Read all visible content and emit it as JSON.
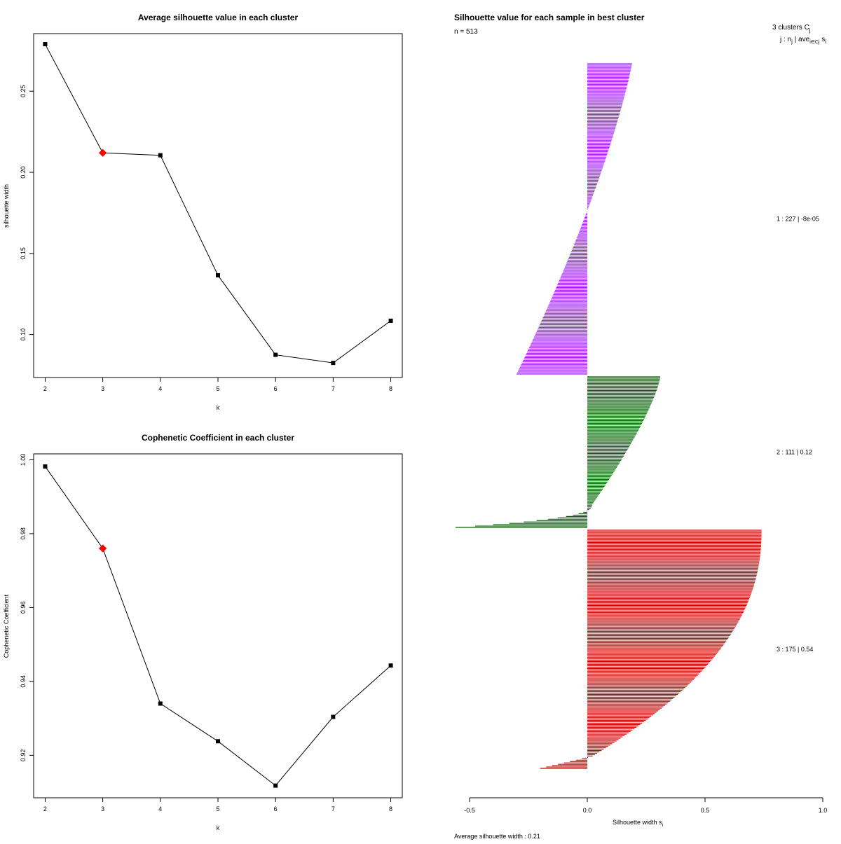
{
  "chart_data": [
    {
      "type": "line",
      "title": "Average silhouette value in each cluster",
      "xlabel": "k",
      "ylabel": "silhouette width",
      "x": [
        2,
        3,
        4,
        5,
        6,
        7,
        8
      ],
      "values": [
        0.279,
        0.212,
        0.2105,
        0.1365,
        0.0875,
        0.0825,
        0.1085
      ],
      "highlight_x": 3,
      "highlight_color": "#ff0000",
      "xticks": [
        "2",
        "3",
        "4",
        "5",
        "6",
        "7",
        "8"
      ],
      "yticks": [
        "0.10",
        "0.15",
        "0.20",
        "0.25"
      ],
      "ytick_values": [
        0.1,
        0.15,
        0.2,
        0.25
      ],
      "xlim": [
        1.8,
        8.2
      ],
      "ylim": [
        0.0735,
        0.2855
      ]
    },
    {
      "type": "line",
      "title": "Cophenetic Coefficient in each cluster",
      "xlabel": "k",
      "ylabel": "Cophenetic Coefficient",
      "x": [
        2,
        3,
        4,
        5,
        6,
        7,
        8
      ],
      "values": [
        0.9982,
        0.976,
        0.934,
        0.9238,
        0.9118,
        0.9304,
        0.9443
      ],
      "highlight_x": 3,
      "highlight_color": "#ff0000",
      "xticks": [
        "2",
        "3",
        "4",
        "5",
        "6",
        "7",
        "8"
      ],
      "yticks": [
        "0.92",
        "0.94",
        "0.96",
        "0.98",
        "1.00"
      ],
      "ytick_values": [
        0.92,
        0.94,
        0.96,
        0.98,
        1.0
      ],
      "xlim": [
        1.8,
        8.2
      ],
      "ylim": [
        0.9085,
        1.0016
      ]
    },
    {
      "type": "bar",
      "orientation": "horizontal",
      "title": "Silhouette value for each sample in best cluster",
      "n_label": "n = 513",
      "header_line1": "3  clusters  C",
      "header_line1_sub": "j",
      "header_line2": "j :  n",
      "header_line2_sub": "j",
      "header_line2_rest": " | ave",
      "header_line2_sub2": "i∈Cj",
      "header_line2_tail": " s",
      "header_line2_sub3": "i",
      "xlabel": "Silhouette width s",
      "xlabel_sub": "i",
      "xlim": [
        -0.5,
        1.0
      ],
      "xticks": [
        "-0.5",
        "0.0",
        "0.5",
        "1.0"
      ],
      "xtick_values": [
        -0.5,
        0.0,
        0.5,
        1.0
      ],
      "average_label": "Average silhouette width :  0.21",
      "clusters": [
        {
          "id": 1,
          "n": 227,
          "average": "-8e-05",
          "label": "1 :   227  |  -8e-05",
          "color": "#a020f0",
          "max": 0.19,
          "min": -0.3
        },
        {
          "id": 2,
          "n": 111,
          "average": "0.12",
          "label": "2 :   111  |  0.12",
          "color": "#006400",
          "max": 0.31,
          "min": -0.56
        },
        {
          "id": 3,
          "n": 175,
          "average": "0.54",
          "label": "3 :   175  |  0.54",
          "color": "#cd0000",
          "max": 0.74,
          "min": -0.2
        }
      ]
    }
  ]
}
